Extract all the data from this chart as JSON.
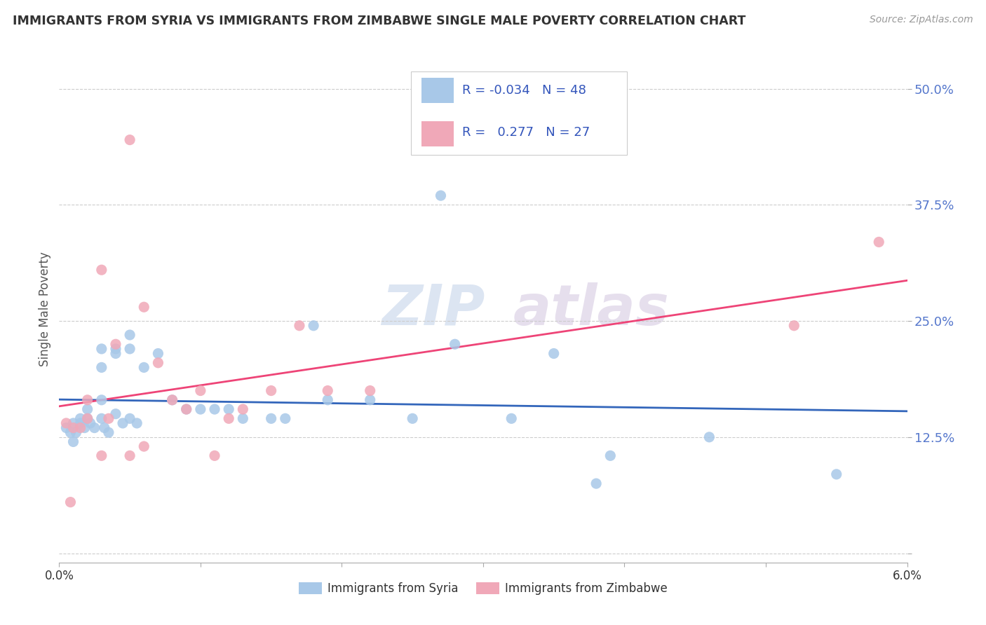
{
  "title": "IMMIGRANTS FROM SYRIA VS IMMIGRANTS FROM ZIMBABWE SINGLE MALE POVERTY CORRELATION CHART",
  "source": "Source: ZipAtlas.com",
  "ylabel": "Single Male Poverty",
  "yticks": [
    0.0,
    0.125,
    0.25,
    0.375,
    0.5
  ],
  "ytick_labels": [
    "",
    "12.5%",
    "25.0%",
    "37.5%",
    "50.0%"
  ],
  "xlim": [
    0.0,
    0.06
  ],
  "ylim": [
    -0.01,
    0.535
  ],
  "watermark_zip": "ZIP",
  "watermark_atlas": "atlas",
  "legend_labels": [
    "Immigrants from Syria",
    "Immigrants from Zimbabwe"
  ],
  "syria_color": "#a8c8e8",
  "zimbabwe_color": "#f0a8b8",
  "syria_line_color": "#3366bb",
  "zimbabwe_line_color": "#ee4477",
  "syria_x": [
    0.0005,
    0.0008,
    0.001,
    0.001,
    0.0012,
    0.0015,
    0.0015,
    0.0018,
    0.002,
    0.002,
    0.0022,
    0.0025,
    0.003,
    0.003,
    0.003,
    0.003,
    0.0032,
    0.0035,
    0.004,
    0.004,
    0.004,
    0.0045,
    0.005,
    0.005,
    0.005,
    0.0055,
    0.006,
    0.007,
    0.008,
    0.009,
    0.01,
    0.011,
    0.012,
    0.013,
    0.015,
    0.016,
    0.018,
    0.019,
    0.022,
    0.025,
    0.027,
    0.028,
    0.032,
    0.035,
    0.038,
    0.039,
    0.046,
    0.055
  ],
  "syria_y": [
    0.135,
    0.13,
    0.14,
    0.12,
    0.13,
    0.145,
    0.14,
    0.135,
    0.155,
    0.145,
    0.14,
    0.135,
    0.22,
    0.2,
    0.165,
    0.145,
    0.135,
    0.13,
    0.22,
    0.215,
    0.15,
    0.14,
    0.235,
    0.22,
    0.145,
    0.14,
    0.2,
    0.215,
    0.165,
    0.155,
    0.155,
    0.155,
    0.155,
    0.145,
    0.145,
    0.145,
    0.245,
    0.165,
    0.165,
    0.145,
    0.385,
    0.225,
    0.145,
    0.215,
    0.075,
    0.105,
    0.125,
    0.085
  ],
  "zimbabwe_x": [
    0.0005,
    0.0008,
    0.001,
    0.0015,
    0.002,
    0.002,
    0.003,
    0.003,
    0.0035,
    0.004,
    0.005,
    0.005,
    0.006,
    0.006,
    0.007,
    0.008,
    0.009,
    0.01,
    0.011,
    0.012,
    0.013,
    0.015,
    0.017,
    0.019,
    0.022,
    0.052,
    0.058
  ],
  "zimbabwe_y": [
    0.14,
    0.055,
    0.135,
    0.135,
    0.165,
    0.145,
    0.305,
    0.105,
    0.145,
    0.225,
    0.445,
    0.105,
    0.115,
    0.265,
    0.205,
    0.165,
    0.155,
    0.175,
    0.105,
    0.145,
    0.155,
    0.175,
    0.245,
    0.175,
    0.175,
    0.245,
    0.335
  ]
}
